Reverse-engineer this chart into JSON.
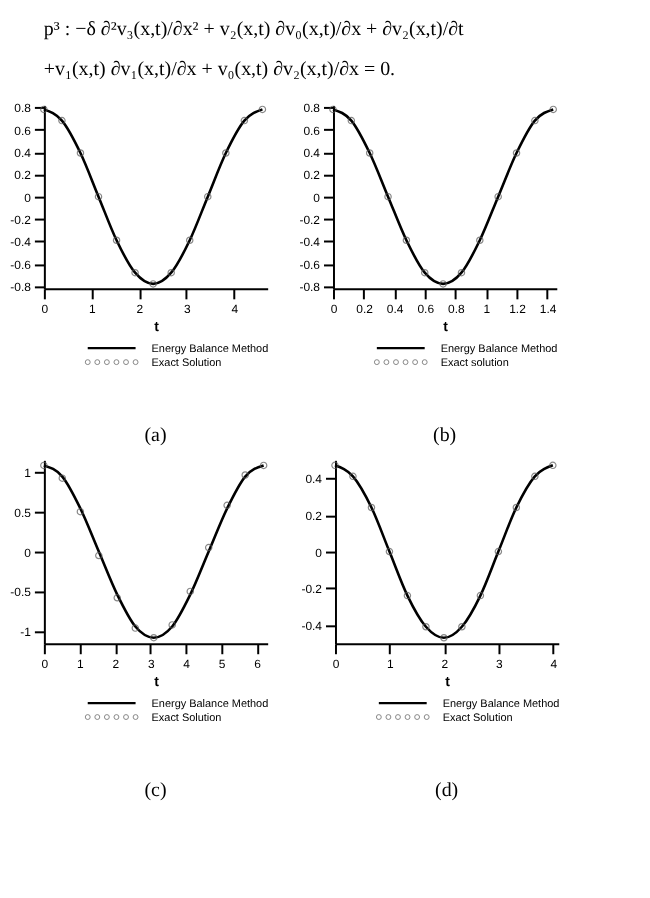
{
  "chart_data": [
    {
      "type": "other",
      "annotations": [
        "p³ : −δ ∂²v₃(x,t)/∂x² + v₂(x,t) ∂v₀(x,t)/∂x + ∂v₂(x,t)/∂t",
        "+v₁(x,t) ∂v₁(x,t)/∂x + v₀(x,t) ∂v₂(x,t)/∂x = 0."
      ]
    },
    {
      "type": "line",
      "title": "(a)",
      "xlabel": "t",
      "x": [
        0,
        0.38,
        0.77,
        1.15,
        1.53,
        1.92,
        2.3,
        2.68,
        3.07,
        3.45,
        3.83,
        4.22,
        4.6
      ],
      "xlim": [
        0,
        4.7
      ],
      "xticks": [
        0,
        1,
        2,
        3,
        4
      ],
      "ylim": [
        -0.82,
        0.82
      ],
      "yticks": [
        -0.8,
        -0.6,
        -0.4,
        -0.2,
        0,
        0.2,
        0.4,
        0.6,
        0.8
      ],
      "legend": "bottom",
      "grid": false,
      "series": [
        {
          "name": "Energy Balance Method",
          "type": "line",
          "color": "#000000",
          "marker": "none",
          "values": [
            0.78,
            0.68,
            0.39,
            0,
            -0.39,
            -0.68,
            -0.78,
            -0.68,
            -0.39,
            0,
            0.39,
            0.68,
            0.78
          ]
        },
        {
          "name": "Exact Solution",
          "type": "scatter",
          "color": "#555555",
          "marker": "circle",
          "values": [
            0.78,
            0.68,
            0.39,
            0,
            -0.39,
            -0.68,
            -0.78,
            -0.68,
            -0.39,
            0,
            0.39,
            0.68,
            0.78
          ]
        }
      ]
    },
    {
      "type": "line",
      "title": "(b)",
      "xlabel": "t",
      "x": [
        0,
        0.12,
        0.24,
        0.36,
        0.48,
        0.6,
        0.72,
        0.84,
        0.96,
        1.08,
        1.2,
        1.32,
        1.44
      ],
      "xlim": [
        0,
        1.46
      ],
      "xticks": [
        0,
        0.2,
        0.4,
        0.6,
        0.8,
        1,
        1.2,
        1.4
      ],
      "ylim": [
        -0.82,
        0.82
      ],
      "yticks": [
        -0.8,
        -0.6,
        -0.4,
        -0.2,
        0,
        0.2,
        0.4,
        0.6,
        0.8
      ],
      "legend": "bottom",
      "grid": false,
      "series": [
        {
          "name": "Energy Balance Method",
          "type": "line",
          "color": "#000000",
          "marker": "none",
          "values": [
            0.78,
            0.68,
            0.39,
            0,
            -0.39,
            -0.68,
            -0.78,
            -0.68,
            -0.39,
            0,
            0.39,
            0.68,
            0.78
          ]
        },
        {
          "name": "Exact solution",
          "type": "scatter",
          "color": "#555555",
          "marker": "circle",
          "values": [
            0.78,
            0.68,
            0.39,
            0,
            -0.39,
            -0.68,
            -0.78,
            -0.68,
            -0.39,
            0,
            0.39,
            0.68,
            0.78
          ]
        }
      ]
    },
    {
      "type": "line",
      "title": "(c)",
      "xlabel": "t",
      "x": [
        0,
        0.52,
        1.03,
        1.55,
        2.07,
        2.58,
        3.1,
        3.62,
        4.13,
        4.65,
        5.17,
        5.68,
        6.2
      ],
      "xlim": [
        0,
        6.3
      ],
      "xticks": [
        0,
        1,
        2,
        3,
        4,
        5,
        6
      ],
      "ylim": [
        -1.15,
        1.15
      ],
      "yticks": [
        -1,
        -0.5,
        0,
        0.5,
        1
      ],
      "legend": "bottom",
      "grid": false,
      "series": [
        {
          "name": "Energy Balance Method",
          "type": "line",
          "color": "#000000",
          "marker": "none",
          "values": [
            1.08,
            0.94,
            0.54,
            0,
            -0.54,
            -0.94,
            -1.08,
            -0.94,
            -0.54,
            0,
            0.54,
            0.94,
            1.08
          ]
        },
        {
          "name": "Exact Solution",
          "type": "scatter",
          "color": "#555555",
          "marker": "circle",
          "values": [
            1.08,
            0.92,
            0.5,
            -0.05,
            -0.58,
            -0.96,
            -1.08,
            -0.92,
            -0.5,
            0.05,
            0.58,
            0.96,
            1.08
          ]
        }
      ]
    },
    {
      "type": "line",
      "title": "(d)",
      "xlabel": "t",
      "x": [
        0,
        0.33,
        0.67,
        1,
        1.33,
        1.67,
        2,
        2.33,
        2.67,
        3,
        3.33,
        3.67,
        4
      ],
      "xlim": [
        0,
        4.1
      ],
      "xticks": [
        0,
        1,
        2,
        3,
        4
      ],
      "ylim": [
        -0.5,
        0.5
      ],
      "yticks": [
        -0.4,
        -0.2,
        0,
        0.2,
        0.4
      ],
      "legend": "bottom",
      "grid": false,
      "series": [
        {
          "name": "Energy Balance Method",
          "type": "line",
          "color": "#000000",
          "marker": "none",
          "values": [
            0.47,
            0.41,
            0.24,
            0,
            -0.24,
            -0.41,
            -0.47,
            -0.41,
            -0.24,
            0,
            0.24,
            0.41,
            0.47
          ]
        },
        {
          "name": "Exact Solution",
          "type": "scatter",
          "color": "#555555",
          "marker": "circle",
          "values": [
            0.47,
            0.41,
            0.24,
            0,
            -0.24,
            -0.41,
            -0.47,
            -0.41,
            -0.24,
            0,
            0.24,
            0.41,
            0.47
          ]
        }
      ]
    }
  ]
}
